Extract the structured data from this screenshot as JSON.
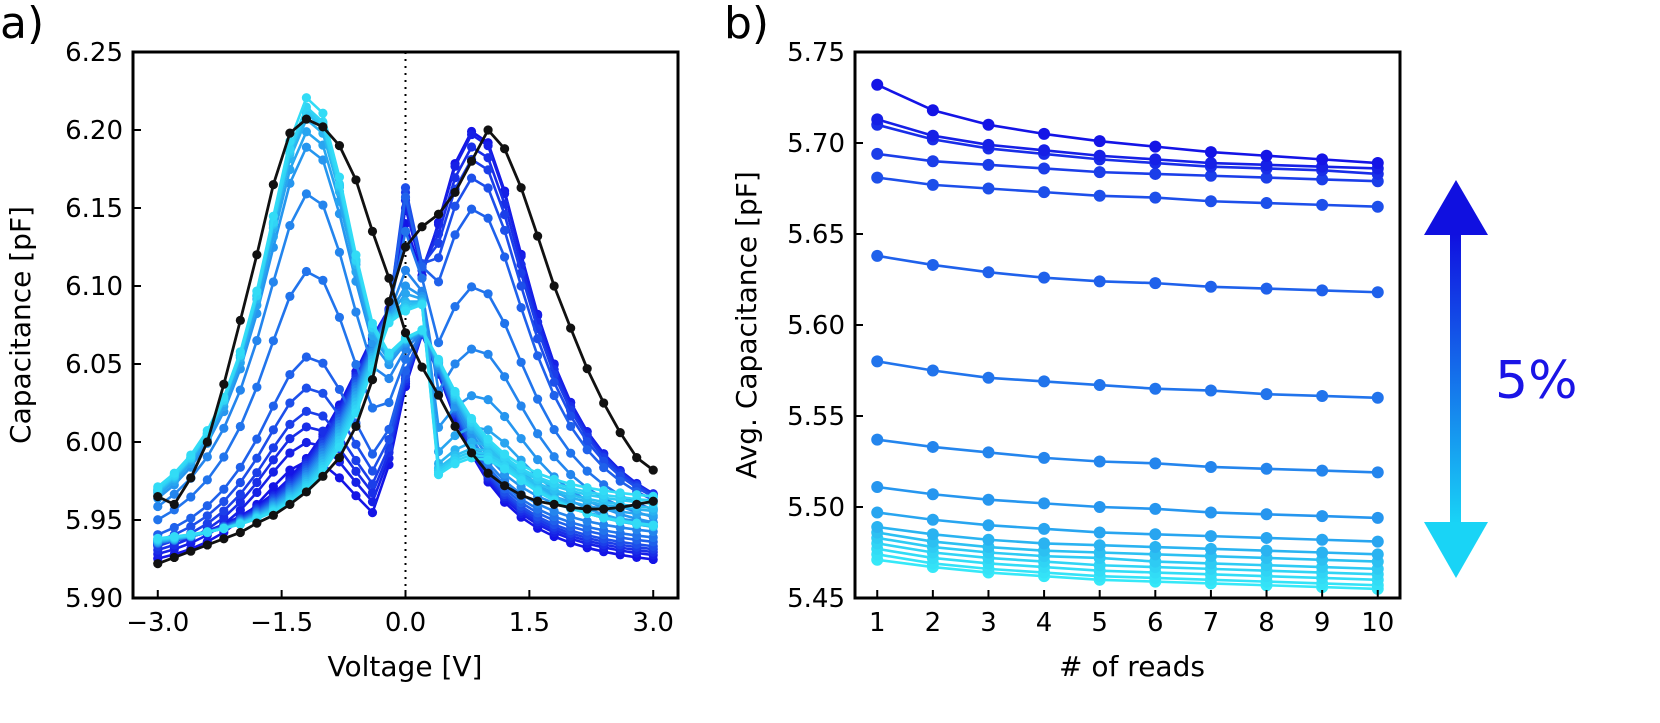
{
  "chart_data": [
    {
      "panel_label": "a)",
      "type": "line",
      "xlabel": "Voltage [V]",
      "ylabel": "Capacitance [pF]",
      "xlim": [
        -3.3,
        3.3
      ],
      "ylim": [
        5.9,
        6.25
      ],
      "xticks": [
        -3.0,
        -1.5,
        0.0,
        1.5,
        3.0
      ],
      "xtick_labels": [
        "−3.0",
        "−1.5",
        "0.0",
        "1.5",
        "3.0"
      ],
      "yticks": [
        5.9,
        5.95,
        6.0,
        6.05,
        6.1,
        6.15,
        6.2,
        6.25
      ],
      "ytick_labels": [
        "5.90",
        "5.95",
        "6.00",
        "6.05",
        "6.10",
        "6.15",
        "6.20",
        "6.25"
      ],
      "vline_x": 0.0,
      "grid": false,
      "legend": "none",
      "black_curve": {
        "color": "#111111",
        "forward": [
          [
            -3.0,
            5.965
          ],
          [
            -2.8,
            5.96
          ],
          [
            -2.6,
            5.977
          ],
          [
            -2.4,
            6.0
          ],
          [
            -2.2,
            6.037
          ],
          [
            -2.0,
            6.078
          ],
          [
            -1.8,
            6.12
          ],
          [
            -1.6,
            6.165
          ],
          [
            -1.4,
            6.198
          ],
          [
            -1.2,
            6.207
          ],
          [
            -1.0,
            6.202
          ],
          [
            -0.8,
            6.19
          ],
          [
            -0.6,
            6.168
          ],
          [
            -0.4,
            6.135
          ],
          [
            -0.2,
            6.105
          ],
          [
            0.0,
            6.07
          ],
          [
            0.2,
            6.048
          ],
          [
            0.4,
            6.03
          ],
          [
            0.6,
            6.01
          ],
          [
            0.8,
            5.993
          ],
          [
            1.0,
            5.98
          ],
          [
            1.2,
            5.972
          ],
          [
            1.4,
            5.966
          ],
          [
            1.6,
            5.962
          ],
          [
            1.8,
            5.96
          ],
          [
            2.0,
            5.958
          ],
          [
            2.2,
            5.957
          ],
          [
            2.4,
            5.957
          ],
          [
            2.6,
            5.958
          ],
          [
            2.8,
            5.96
          ],
          [
            3.0,
            5.962
          ]
        ],
        "reverse": [
          [
            3.0,
            5.982
          ],
          [
            2.8,
            5.99
          ],
          [
            2.6,
            6.006
          ],
          [
            2.4,
            6.025
          ],
          [
            2.2,
            6.047
          ],
          [
            2.0,
            6.073
          ],
          [
            1.8,
            6.1
          ],
          [
            1.6,
            6.132
          ],
          [
            1.4,
            6.163
          ],
          [
            1.2,
            6.188
          ],
          [
            1.0,
            6.2
          ],
          [
            0.8,
            6.18
          ],
          [
            0.6,
            6.16
          ],
          [
            0.4,
            6.146
          ],
          [
            0.2,
            6.138
          ],
          [
            0.0,
            6.125
          ],
          [
            -0.2,
            6.09
          ],
          [
            -0.4,
            6.04
          ],
          [
            -0.6,
            6.01
          ],
          [
            -0.8,
            5.99
          ],
          [
            -1.0,
            5.978
          ],
          [
            -1.2,
            5.968
          ],
          [
            -1.4,
            5.96
          ],
          [
            -1.6,
            5.953
          ],
          [
            -1.8,
            5.948
          ],
          [
            -2.0,
            5.942
          ],
          [
            -2.2,
            5.938
          ],
          [
            -2.4,
            5.934
          ],
          [
            -2.6,
            5.93
          ],
          [
            -2.8,
            5.926
          ],
          [
            -3.0,
            5.922
          ]
        ]
      },
      "family_colors": [
        "#1414e6",
        "#1620e6",
        "#192ee8",
        "#1b3ee9",
        "#1d4fea",
        "#1f61eb",
        "#2174ec",
        "#2485ed",
        "#2696ef",
        "#28a5f0",
        "#2ab3f1",
        "#2cc0f2",
        "#2ecbf4",
        "#30d4f5",
        "#32dcf6"
      ],
      "family_up_max": [
        6.14,
        6.15,
        6.155,
        6.16,
        6.163,
        6.157,
        6.135,
        6.11,
        6.1,
        6.095,
        6.09,
        6.088,
        6.086,
        6.085,
        6.084
      ],
      "family_up_peak": [
        6.2,
        6.198,
        6.19,
        6.182,
        6.17,
        6.15,
        6.1,
        6.06,
        6.03,
        6.01,
        6.0,
        5.996,
        5.994,
        5.992,
        5.99
      ],
      "family_down_max": [
        5.915,
        5.918,
        5.92,
        5.922,
        5.924,
        5.927,
        5.93,
        5.934,
        5.94,
        5.945,
        5.948,
        5.95,
        5.953,
        5.955,
        5.958
      ],
      "family_down_peak": [
        5.988,
        6.0,
        6.01,
        6.02,
        6.035,
        6.055,
        6.11,
        6.16,
        6.19,
        6.2,
        6.208,
        6.212,
        6.214,
        6.216,
        6.222
      ]
    },
    {
      "panel_label": "b)",
      "type": "line",
      "xlabel": "# of reads",
      "ylabel": "Avg. Capacitance [pF]",
      "xlim": [
        0.6,
        10.4
      ],
      "ylim": [
        5.45,
        5.75
      ],
      "xticks": [
        1,
        2,
        3,
        4,
        5,
        6,
        7,
        8,
        9,
        10
      ],
      "xtick_labels": [
        "1",
        "2",
        "3",
        "4",
        "5",
        "6",
        "7",
        "8",
        "9",
        "10"
      ],
      "yticks": [
        5.45,
        5.5,
        5.55,
        5.6,
        5.65,
        5.7,
        5.75
      ],
      "ytick_labels": [
        "5.45",
        "5.50",
        "5.55",
        "5.60",
        "5.65",
        "5.70",
        "5.75"
      ],
      "grid": false,
      "legend": "none",
      "x": [
        1,
        2,
        3,
        4,
        5,
        6,
        7,
        8,
        9,
        10
      ],
      "series": [
        {
          "color": "#1414e6",
          "values": [
            5.732,
            5.718,
            5.71,
            5.705,
            5.701,
            5.698,
            5.695,
            5.693,
            5.691,
            5.689
          ]
        },
        {
          "color": "#1620e6",
          "values": [
            5.713,
            5.704,
            5.699,
            5.696,
            5.693,
            5.691,
            5.689,
            5.688,
            5.687,
            5.686
          ]
        },
        {
          "color": "#192ee8",
          "values": [
            5.71,
            5.702,
            5.697,
            5.694,
            5.691,
            5.689,
            5.687,
            5.686,
            5.685,
            5.683
          ]
        },
        {
          "color": "#1b3ee9",
          "values": [
            5.694,
            5.69,
            5.688,
            5.686,
            5.684,
            5.683,
            5.682,
            5.681,
            5.68,
            5.679
          ]
        },
        {
          "color": "#1d4fea",
          "values": [
            5.681,
            5.677,
            5.675,
            5.673,
            5.671,
            5.67,
            5.668,
            5.667,
            5.666,
            5.665
          ]
        },
        {
          "color": "#1f61eb",
          "values": [
            5.638,
            5.633,
            5.629,
            5.626,
            5.624,
            5.623,
            5.621,
            5.62,
            5.619,
            5.618
          ]
        },
        {
          "color": "#2174ec",
          "values": [
            5.58,
            5.575,
            5.571,
            5.569,
            5.567,
            5.565,
            5.564,
            5.562,
            5.561,
            5.56
          ]
        },
        {
          "color": "#2485ed",
          "values": [
            5.537,
            5.533,
            5.53,
            5.527,
            5.525,
            5.524,
            5.522,
            5.521,
            5.52,
            5.519
          ]
        },
        {
          "color": "#2696ef",
          "values": [
            5.511,
            5.507,
            5.504,
            5.502,
            5.5,
            5.499,
            5.497,
            5.496,
            5.495,
            5.494
          ]
        },
        {
          "color": "#28a5f0",
          "values": [
            5.497,
            5.493,
            5.49,
            5.488,
            5.486,
            5.485,
            5.484,
            5.483,
            5.482,
            5.481
          ]
        },
        {
          "color": "#2ab3f1",
          "values": [
            5.489,
            5.485,
            5.482,
            5.48,
            5.479,
            5.478,
            5.477,
            5.476,
            5.475,
            5.474
          ]
        },
        {
          "color": "#2cc0f2",
          "values": [
            5.486,
            5.481,
            5.478,
            5.476,
            5.475,
            5.474,
            5.473,
            5.472,
            5.471,
            5.47
          ]
        },
        {
          "color": "#2ecbf4",
          "values": [
            5.483,
            5.478,
            5.475,
            5.473,
            5.472,
            5.47,
            5.469,
            5.468,
            5.467,
            5.466
          ]
        },
        {
          "color": "#30d4f5",
          "values": [
            5.48,
            5.475,
            5.472,
            5.47,
            5.468,
            5.467,
            5.466,
            5.465,
            5.464,
            5.463
          ]
        },
        {
          "color": "#32dcf6",
          "values": [
            5.477,
            5.472,
            5.469,
            5.467,
            5.465,
            5.464,
            5.463,
            5.462,
            5.461,
            5.46
          ]
        },
        {
          "color": "#34e2f7",
          "values": [
            5.474,
            5.469,
            5.466,
            5.464,
            5.462,
            5.461,
            5.46,
            5.459,
            5.458,
            5.457
          ]
        },
        {
          "color": "#36e8f8",
          "values": [
            5.471,
            5.467,
            5.464,
            5.462,
            5.46,
            5.459,
            5.458,
            5.457,
            5.456,
            5.455
          ]
        }
      ],
      "annotation": {
        "text": "5%",
        "color": "#1a14e6",
        "arrow_top_color": "#1010e0",
        "arrow_bottom_color": "#19d4f6"
      }
    }
  ]
}
